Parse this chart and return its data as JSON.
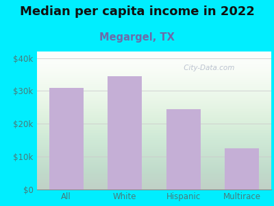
{
  "title": "Median per capita income in 2022",
  "subtitle": "Megargel, TX",
  "categories": [
    "All",
    "White",
    "Hispanic",
    "Multirace"
  ],
  "values": [
    31000,
    34500,
    24500,
    12500
  ],
  "bar_color": "#c5afd6",
  "title_fontsize": 13,
  "subtitle_fontsize": 10.5,
  "subtitle_color": "#6b6baa",
  "tick_label_color": "#4a7a7a",
  "background_outer": "#00eeff",
  "background_inner_top": "#e8f5e8",
  "background_inner_bottom": "#ffffff",
  "ylim": [
    0,
    42000
  ],
  "yticks": [
    0,
    10000,
    20000,
    30000,
    40000
  ],
  "ytick_labels": [
    "$0",
    "$10k",
    "$20k",
    "$30k",
    "$40k"
  ],
  "watermark": " City-Data.com"
}
